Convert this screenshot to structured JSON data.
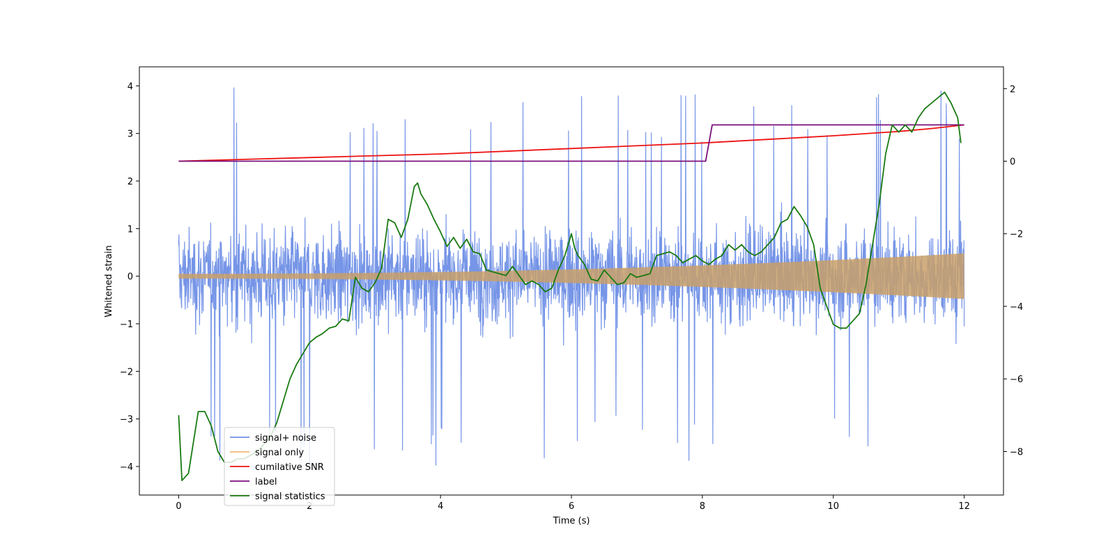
{
  "chart_data": {
    "type": "line",
    "title": "",
    "xlabel": "Time (s)",
    "ylabel": "Whitened strain",
    "y2label": "",
    "xlim": [
      -0.6,
      12.6
    ],
    "ylim": [
      -4.6,
      4.4
    ],
    "y2lim": [
      -9.2,
      2.6
    ],
    "x_ticks": [
      0,
      2,
      4,
      6,
      8,
      10,
      12
    ],
    "y_ticks": [
      -4,
      -3,
      -2,
      -1,
      0,
      1,
      2,
      3,
      4
    ],
    "y2_ticks": [
      -8,
      -6,
      -4,
      -2,
      0,
      2
    ],
    "legend_position": "lower-left",
    "series": [
      {
        "name": "signal+ noise",
        "axis": "left",
        "color": "#6f8fe6",
        "kind": "noise",
        "x_range": [
          0,
          12
        ],
        "typical_amplitude": 1.5,
        "peak_amplitude": 4.0
      },
      {
        "name": "signal only",
        "axis": "left",
        "color": "#f5b971",
        "kind": "chirp",
        "x_range": [
          0,
          12
        ],
        "amplitude_start": 0.05,
        "amplitude_end": 0.48
      },
      {
        "name": "cumilative SNR",
        "axis": "right",
        "color": "#ee1111",
        "kind": "line",
        "x": [
          0,
          2,
          4,
          6,
          8,
          9,
          10,
          11,
          11.5,
          12
        ],
        "y": [
          0.0,
          0.1,
          0.2,
          0.35,
          0.5,
          0.6,
          0.7,
          0.82,
          0.9,
          1.0
        ]
      },
      {
        "name": "label",
        "axis": "right",
        "color": "#7b0f7b",
        "kind": "line",
        "x": [
          0,
          8.05,
          8.15,
          12
        ],
        "y": [
          0,
          0,
          1,
          1
        ]
      },
      {
        "name": "signal statistics",
        "axis": "right",
        "color": "#1a7a12",
        "kind": "line",
        "x": [
          0,
          0.05,
          0.15,
          0.3,
          0.4,
          0.5,
          0.6,
          0.7,
          0.8,
          0.9,
          1.0,
          1.1,
          1.2,
          1.4,
          1.5,
          1.6,
          1.7,
          1.8,
          1.9,
          2.0,
          2.1,
          2.2,
          2.3,
          2.4,
          2.5,
          2.6,
          2.7,
          2.8,
          2.9,
          3.0,
          3.1,
          3.2,
          3.3,
          3.4,
          3.5,
          3.6,
          3.65,
          3.7,
          3.8,
          3.9,
          4.0,
          4.1,
          4.2,
          4.3,
          4.4,
          4.5,
          4.6,
          4.7,
          4.8,
          4.9,
          5.0,
          5.1,
          5.2,
          5.3,
          5.4,
          5.5,
          5.6,
          5.7,
          5.8,
          5.9,
          6.0,
          6.05,
          6.1,
          6.2,
          6.3,
          6.4,
          6.5,
          6.6,
          6.7,
          6.8,
          6.9,
          7.0,
          7.1,
          7.2,
          7.3,
          7.4,
          7.5,
          7.6,
          7.7,
          7.8,
          7.9,
          8.0,
          8.1,
          8.2,
          8.3,
          8.4,
          8.5,
          8.6,
          8.7,
          8.8,
          8.9,
          9.0,
          9.1,
          9.2,
          9.3,
          9.4,
          9.5,
          9.6,
          9.7,
          9.8,
          9.9,
          10.0,
          10.1,
          10.2,
          10.3,
          10.4,
          10.5,
          10.6,
          10.7,
          10.8,
          10.9,
          11.0,
          11.1,
          11.2,
          11.3,
          11.4,
          11.5,
          11.6,
          11.7,
          11.8,
          11.9,
          11.95
        ],
        "y": [
          -7.0,
          -8.8,
          -8.6,
          -6.9,
          -6.9,
          -7.3,
          -8.0,
          -8.3,
          -8.3,
          -8.2,
          -8.2,
          -8.1,
          -8.0,
          -7.6,
          -7.2,
          -6.6,
          -6.0,
          -5.6,
          -5.3,
          -5.0,
          -4.85,
          -4.75,
          -4.6,
          -4.55,
          -4.35,
          -4.4,
          -3.2,
          -3.5,
          -3.6,
          -3.35,
          -2.95,
          -1.6,
          -1.7,
          -2.1,
          -1.6,
          -0.7,
          -0.6,
          -0.9,
          -1.2,
          -1.6,
          -1.95,
          -2.35,
          -2.1,
          -2.4,
          -2.15,
          -2.5,
          -2.55,
          -3.0,
          -3.05,
          -3.1,
          -3.15,
          -2.9,
          -3.15,
          -3.4,
          -3.3,
          -3.4,
          -3.6,
          -3.5,
          -3.0,
          -2.6,
          -2.0,
          -2.4,
          -2.6,
          -2.85,
          -3.25,
          -3.3,
          -3.0,
          -3.2,
          -3.4,
          -3.35,
          -3.1,
          -3.2,
          -3.15,
          -3.1,
          -2.6,
          -2.55,
          -2.5,
          -2.6,
          -2.8,
          -2.7,
          -2.6,
          -2.75,
          -2.85,
          -2.7,
          -2.6,
          -2.3,
          -2.45,
          -2.3,
          -2.5,
          -2.6,
          -2.5,
          -2.3,
          -2.1,
          -1.7,
          -1.6,
          -1.25,
          -1.5,
          -1.8,
          -2.3,
          -3.5,
          -4.0,
          -4.5,
          -4.6,
          -4.6,
          -4.4,
          -4.2,
          -3.4,
          -2.3,
          -1.2,
          0.2,
          1.0,
          0.8,
          1.0,
          0.8,
          1.2,
          1.45,
          1.6,
          1.75,
          1.9,
          1.6,
          1.2,
          0.5
        ]
      }
    ]
  }
}
